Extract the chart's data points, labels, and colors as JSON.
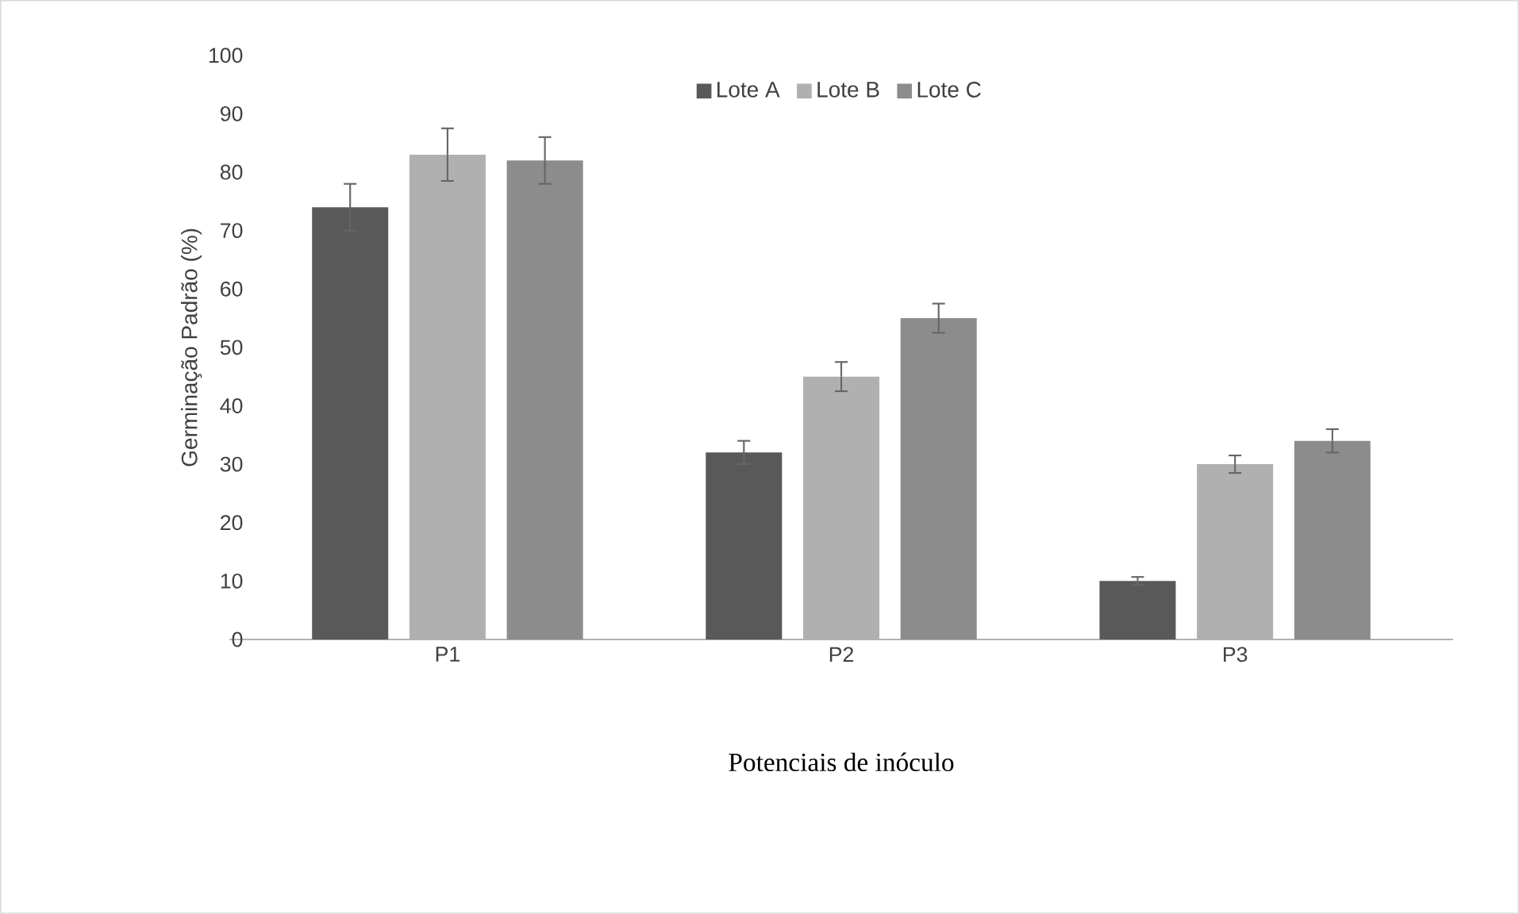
{
  "chart_data": {
    "type": "bar",
    "xlabel": "Potenciais de inóculo",
    "ylabel": "Germinação Padrão (%)",
    "categories": [
      "P1",
      "P2",
      "P3"
    ],
    "series": [
      {
        "name": "Lote A",
        "color": "#595959",
        "values": [
          74,
          32,
          10
        ],
        "errors": [
          4,
          2,
          0.7
        ]
      },
      {
        "name": "Lote B",
        "color": "#b0b0b0",
        "values": [
          83,
          45,
          30
        ],
        "errors": [
          4.5,
          2.5,
          1.5
        ]
      },
      {
        "name": "Lote C",
        "color": "#8c8c8c",
        "values": [
          82,
          55,
          34
        ],
        "errors": [
          4,
          2.5,
          2
        ]
      }
    ],
    "ylim": [
      0,
      100
    ],
    "yticks": [
      0,
      10,
      20,
      30,
      40,
      50,
      60,
      70,
      80,
      90,
      100
    ],
    "legend": "top"
  }
}
